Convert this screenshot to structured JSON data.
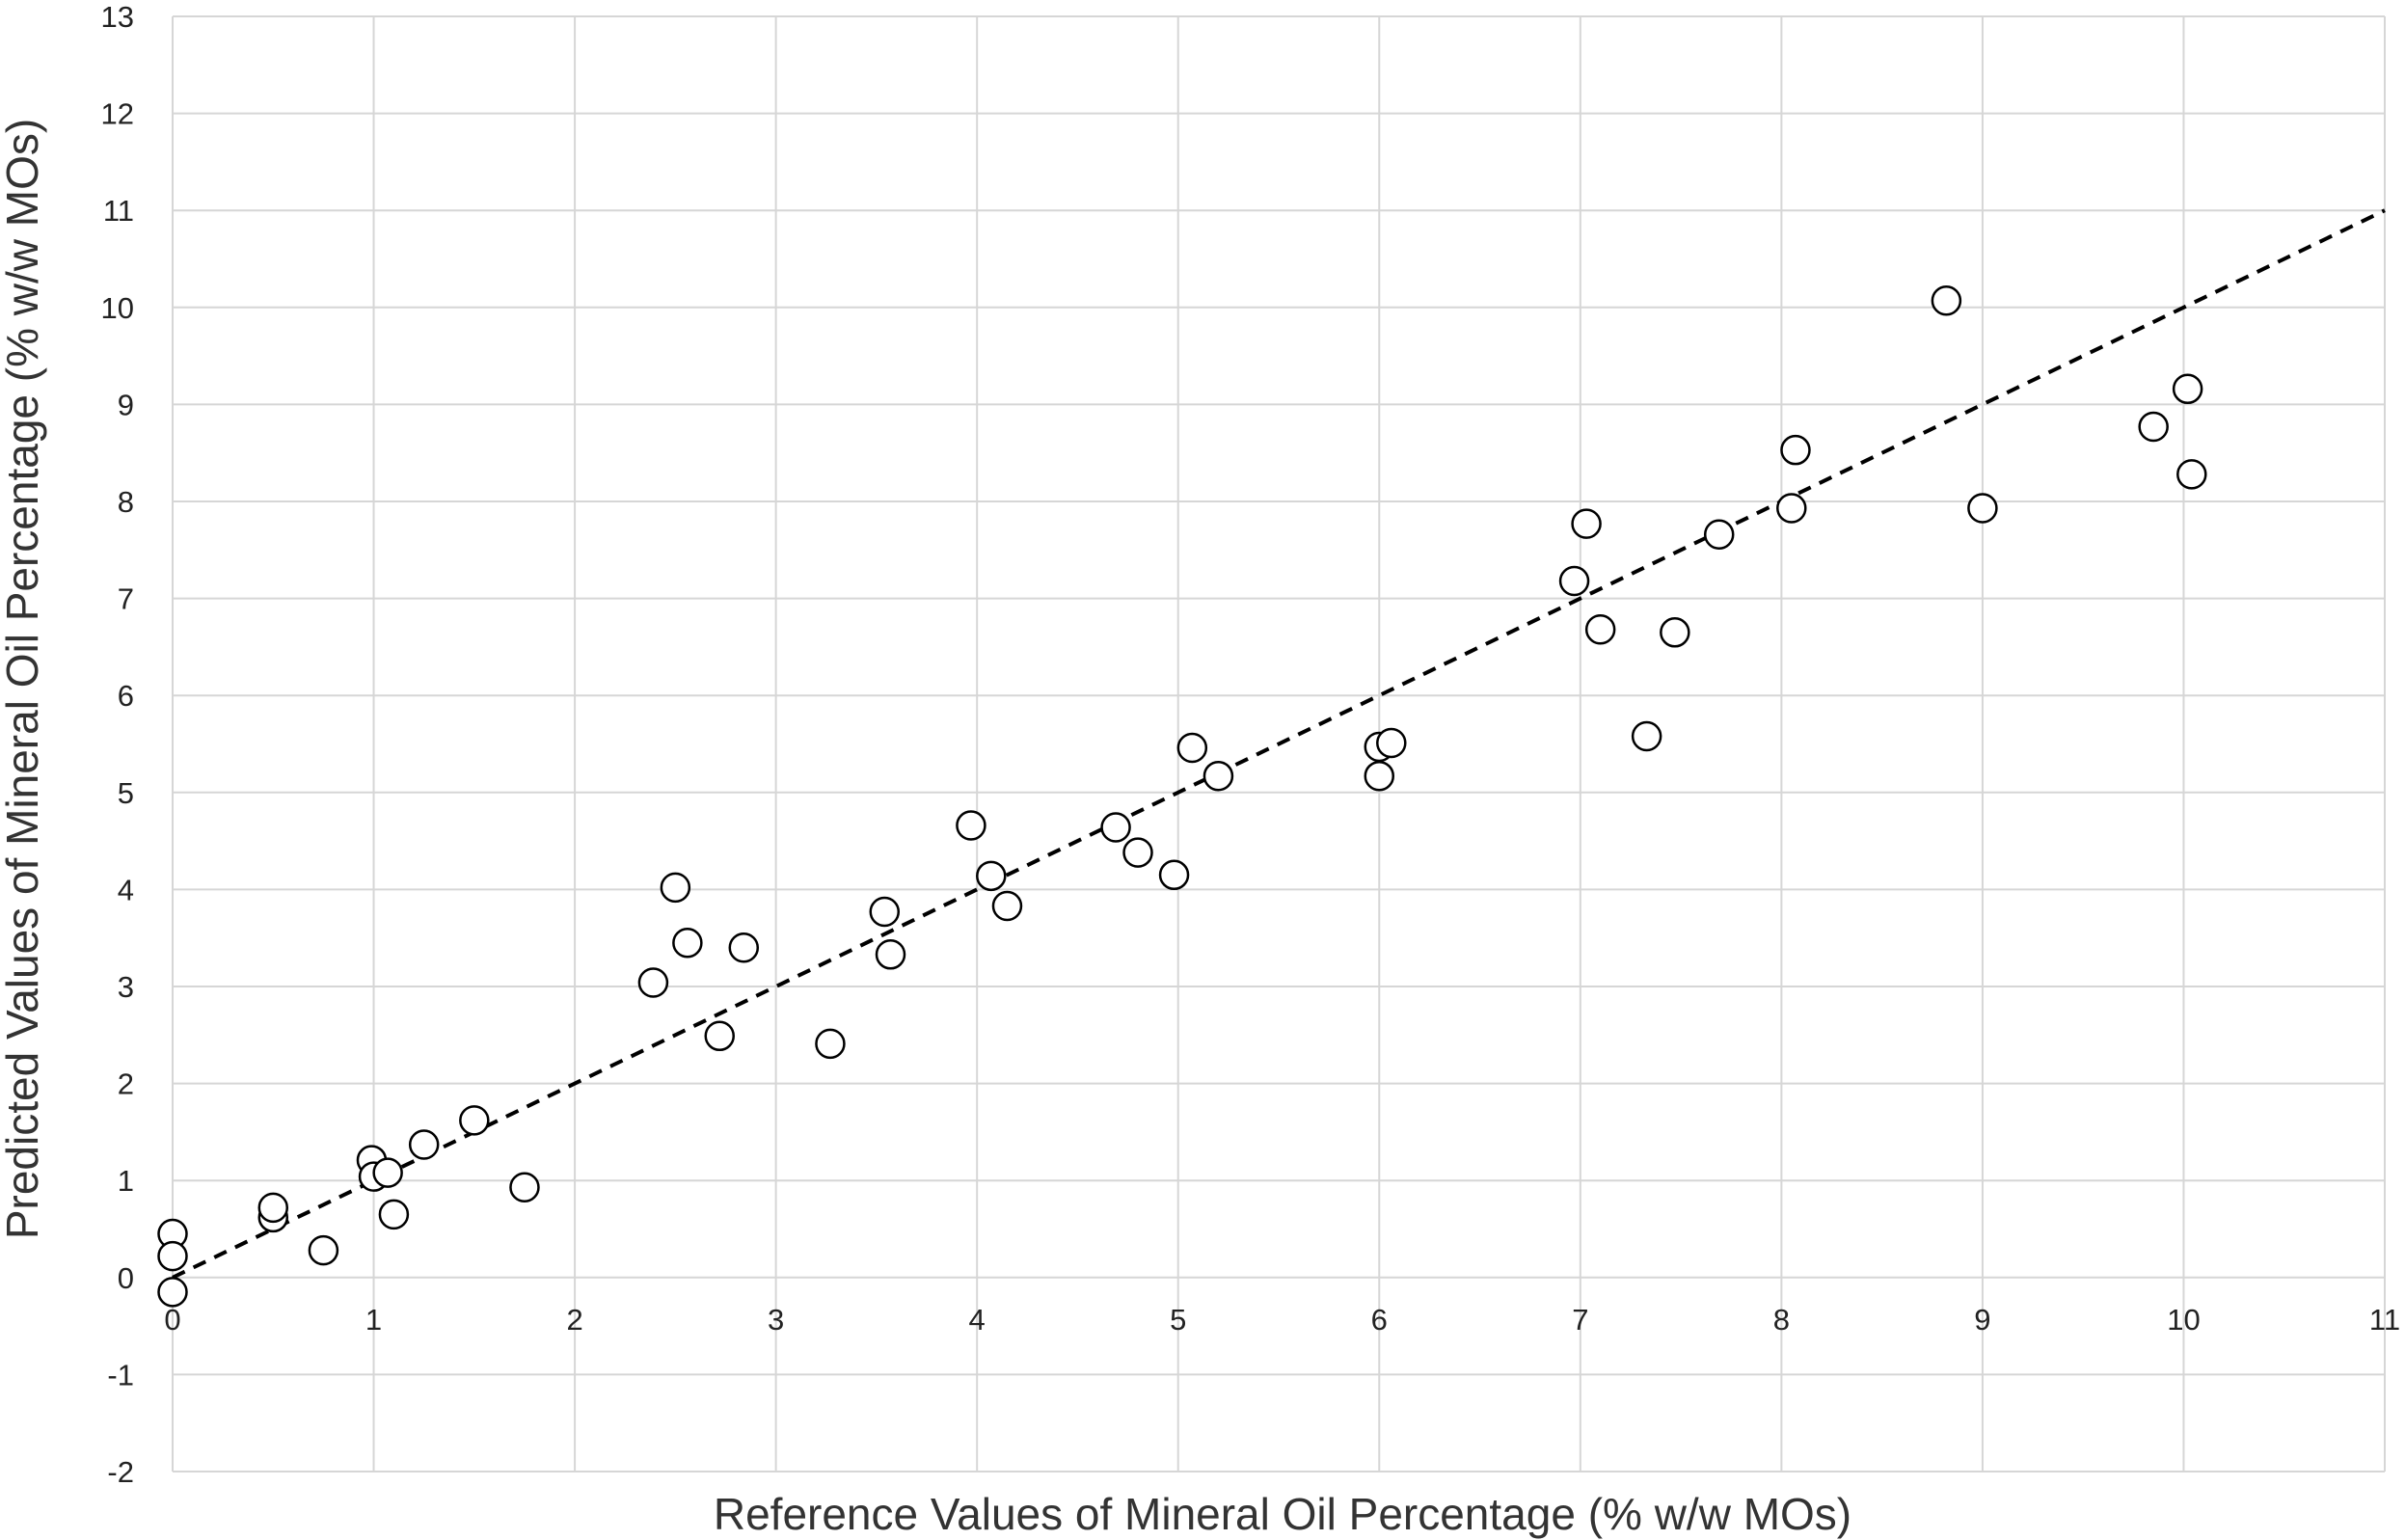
{
  "chart_data": {
    "type": "scatter",
    "xlabel": "Reference Values of Mineral Oil Percentage (% w/w MOs)",
    "ylabel": "Predicted Values of Mineral Oil Percentage (% w/w MOs)",
    "xlim": [
      0,
      11
    ],
    "ylim": [
      -2,
      13
    ],
    "x_ticks": [
      0,
      1,
      2,
      3,
      4,
      5,
      6,
      7,
      8,
      9,
      10,
      11
    ],
    "y_ticks": [
      -2,
      -1,
      0,
      1,
      2,
      3,
      4,
      5,
      6,
      7,
      8,
      9,
      10,
      11,
      12,
      13
    ],
    "grid": true,
    "legend": "none",
    "reference_line": {
      "style": "dashed",
      "color": "#000000",
      "from": [
        0,
        0
      ],
      "to": [
        11,
        11
      ]
    },
    "marker": {
      "shape": "circle",
      "fill": "#ffffff",
      "edge": "#000000"
    },
    "points": [
      {
        "x": 0.0,
        "y": 0.45
      },
      {
        "x": 0.0,
        "y": 0.22
      },
      {
        "x": 0.0,
        "y": -0.15
      },
      {
        "x": 0.5,
        "y": 0.62
      },
      {
        "x": 0.5,
        "y": 0.72
      },
      {
        "x": 0.75,
        "y": 0.28
      },
      {
        "x": 0.99,
        "y": 1.21
      },
      {
        "x": 1.0,
        "y": 1.04
      },
      {
        "x": 1.07,
        "y": 1.08
      },
      {
        "x": 1.1,
        "y": 0.65
      },
      {
        "x": 1.25,
        "y": 1.37
      },
      {
        "x": 1.5,
        "y": 1.62
      },
      {
        "x": 1.75,
        "y": 0.93
      },
      {
        "x": 2.39,
        "y": 3.04
      },
      {
        "x": 2.5,
        "y": 4.02
      },
      {
        "x": 2.56,
        "y": 3.45
      },
      {
        "x": 2.72,
        "y": 2.49
      },
      {
        "x": 2.84,
        "y": 3.4
      },
      {
        "x": 3.27,
        "y": 2.41
      },
      {
        "x": 3.54,
        "y": 3.77
      },
      {
        "x": 3.57,
        "y": 3.33
      },
      {
        "x": 3.97,
        "y": 4.66
      },
      {
        "x": 4.07,
        "y": 4.14
      },
      {
        "x": 4.15,
        "y": 3.83
      },
      {
        "x": 4.69,
        "y": 4.64
      },
      {
        "x": 4.8,
        "y": 4.38
      },
      {
        "x": 4.98,
        "y": 4.15
      },
      {
        "x": 5.07,
        "y": 5.46
      },
      {
        "x": 5.2,
        "y": 5.17
      },
      {
        "x": 6.0,
        "y": 5.47
      },
      {
        "x": 6.0,
        "y": 5.17
      },
      {
        "x": 6.06,
        "y": 5.51
      },
      {
        "x": 6.97,
        "y": 7.18
      },
      {
        "x": 7.03,
        "y": 7.77
      },
      {
        "x": 7.1,
        "y": 6.68
      },
      {
        "x": 7.33,
        "y": 5.58
      },
      {
        "x": 7.47,
        "y": 6.65
      },
      {
        "x": 7.69,
        "y": 7.66
      },
      {
        "x": 8.05,
        "y": 7.93
      },
      {
        "x": 8.07,
        "y": 8.53
      },
      {
        "x": 8.82,
        "y": 10.07
      },
      {
        "x": 9.0,
        "y": 7.93
      },
      {
        "x": 9.85,
        "y": 8.77
      },
      {
        "x": 10.02,
        "y": 9.16
      },
      {
        "x": 10.04,
        "y": 8.28
      }
    ]
  }
}
